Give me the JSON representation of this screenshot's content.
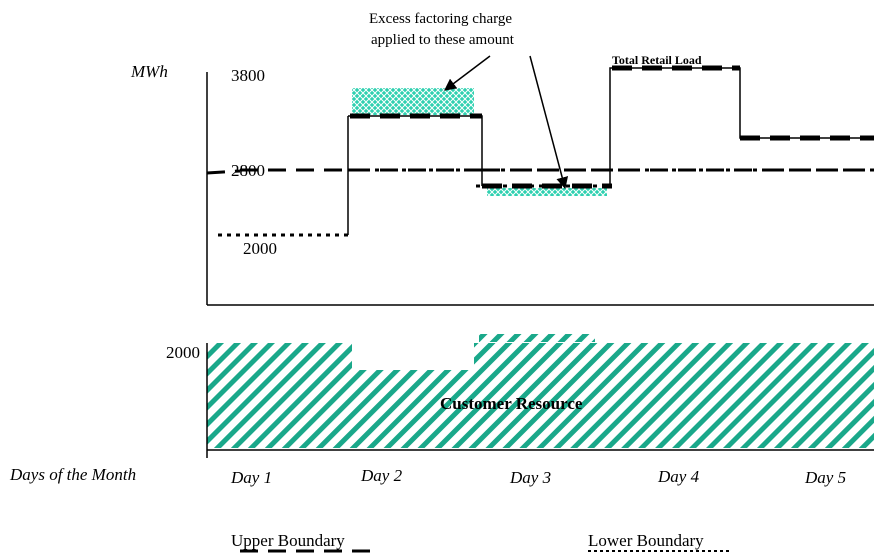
{
  "unit_label": "MWh",
  "y_values": {
    "top": "3800",
    "mid": "2800",
    "low": "2000",
    "resource": "2000"
  },
  "annotation": {
    "line1": "Excess factoring charge",
    "line2": "applied to these amount"
  },
  "total_retail_load_label": "Total Retail Load",
  "customer_resource_label": "Customer Resource",
  "x_axis_title": "Days of the Month",
  "days": [
    "Day 1",
    "Day 2",
    "Day 3",
    "Day 4",
    "Day 5"
  ],
  "legend": {
    "upper": "Upper Boundary",
    "lower": "Lower Boundary"
  },
  "colors": {
    "teal": "#1aa88a",
    "teal_light": "#2fd0b0",
    "black": "#000000"
  }
}
